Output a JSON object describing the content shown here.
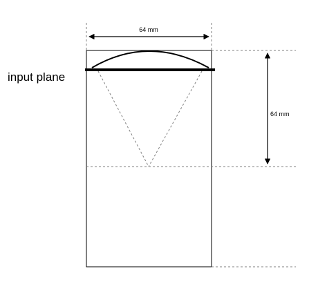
{
  "labels": {
    "top_dimension": "64 mm",
    "side_dimension": "64 mm",
    "input_plane": "input plane"
  },
  "colors": {
    "line": "#000000",
    "dashed": "#808080",
    "background": "#ffffff"
  }
}
